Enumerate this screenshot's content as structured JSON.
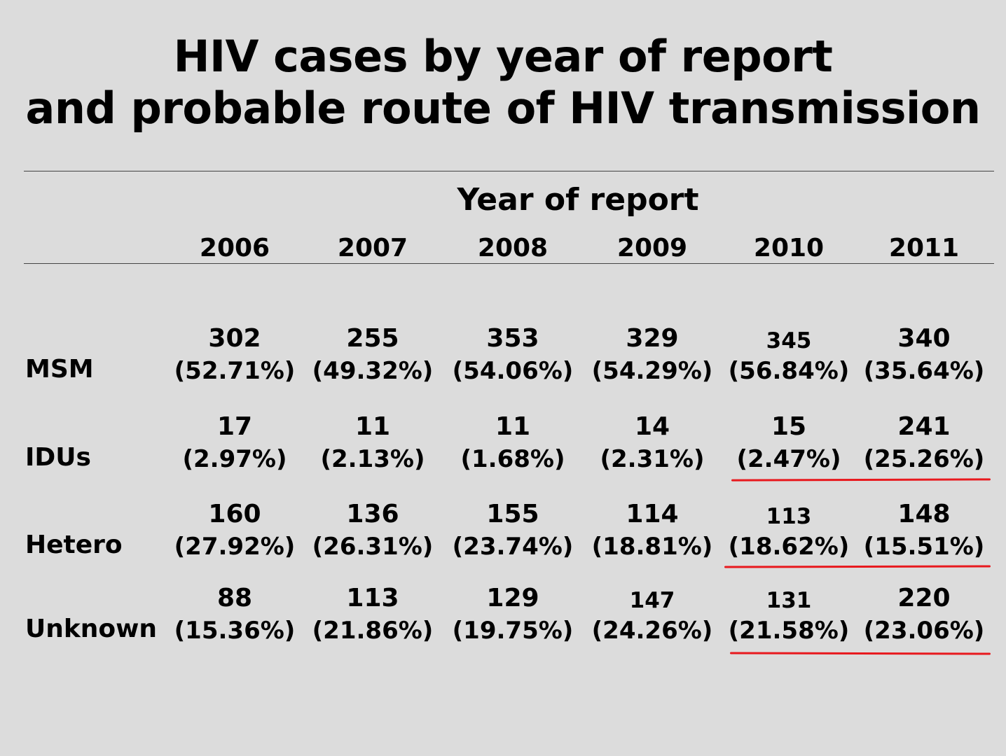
{
  "title": {
    "line1": "HIV cases by year of report",
    "line2": "and probable route of HIV transmission"
  },
  "table": {
    "group_header": "Year of report",
    "years": [
      "2006",
      "2007",
      "2008",
      "2009",
      "2010",
      "2011"
    ],
    "rows": [
      {
        "label": "MSM",
        "cells": [
          {
            "count": "302",
            "pct": "(52.71%)"
          },
          {
            "count": "255",
            "pct": "(49.32%)"
          },
          {
            "count": "353",
            "pct": "(54.06%)"
          },
          {
            "count": "329",
            "pct": "(54.29%)"
          },
          {
            "count": "345",
            "pct": "(56.84%)"
          },
          {
            "count": "340",
            "pct": "(35.64%)"
          }
        ]
      },
      {
        "label": "IDUs",
        "cells": [
          {
            "count": "17",
            "pct": "(2.97%)"
          },
          {
            "count": "11",
            "pct": "(2.13%)"
          },
          {
            "count": "11",
            "pct": "(1.68%)"
          },
          {
            "count": "14",
            "pct": "(2.31%)"
          },
          {
            "count": "15",
            "pct": "(2.47%)"
          },
          {
            "count": "241",
            "pct": "(25.26%)"
          }
        ]
      },
      {
        "label": "Hetero",
        "cells": [
          {
            "count": "160",
            "pct": "(27.92%)"
          },
          {
            "count": "136",
            "pct": "(26.31%)"
          },
          {
            "count": "155",
            "pct": "(23.74%)"
          },
          {
            "count": "114",
            "pct": "(18.81%)"
          },
          {
            "count": "113",
            "pct": "(18.62%)"
          },
          {
            "count": "148",
            "pct": "(15.51%)"
          }
        ]
      },
      {
        "label": "Unknown",
        "cells": [
          {
            "count": "88",
            "pct": "(15.36%)"
          },
          {
            "count": "113",
            "pct": "(21.86%)"
          },
          {
            "count": "129",
            "pct": "(19.75%)"
          },
          {
            "count": "147",
            "pct": "(24.26%)"
          },
          {
            "count": "131",
            "pct": "(21.58%)"
          },
          {
            "count": "220",
            "pct": "(23.06%)"
          }
        ]
      }
    ]
  },
  "colors": {
    "background": "#dcdcdc",
    "text": "#000000",
    "highlight_underline": "#e8191e"
  }
}
